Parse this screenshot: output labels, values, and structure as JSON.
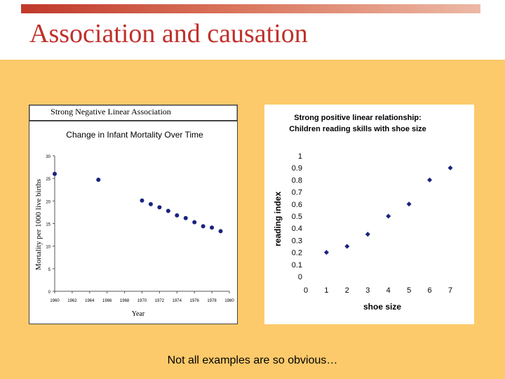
{
  "slide": {
    "title": "Association and causation",
    "caption": "Not all examples are so obvious…"
  },
  "colors": {
    "title": "#c0302b",
    "background": "#fdca6b",
    "marker_dark": "#1a237e"
  },
  "chart_data": [
    {
      "type": "scatter",
      "header": "Strong Negative Linear Association",
      "title": "Change in Infant Mortality Over Time",
      "xlabel": "Year",
      "ylabel": "Mortality per 1000 live births",
      "xlim": [
        1960,
        1980
      ],
      "ylim": [
        0,
        30
      ],
      "xticks": [
        "1960",
        "1962",
        "1964",
        "1966",
        "1968",
        "1970",
        "1972",
        "1974",
        "1976",
        "1978",
        "1980"
      ],
      "yticks": [
        "0",
        "5",
        "10",
        "15",
        "20",
        "25",
        "30"
      ],
      "x": [
        1960,
        1965,
        1970,
        1971,
        1972,
        1973,
        1974,
        1975,
        1976,
        1977,
        1978,
        1979
      ],
      "y": [
        26,
        24.7,
        20.1,
        19.3,
        18.6,
        17.8,
        16.8,
        16.2,
        15.3,
        14.4,
        14.1,
        13.3
      ]
    },
    {
      "type": "scatter",
      "title": "Strong positive linear relationship:",
      "subtitle": "Children reading skills with shoe size",
      "xlabel": "shoe size",
      "ylabel": "reading index",
      "xlim": [
        0,
        7
      ],
      "ylim": [
        0,
        1
      ],
      "xticks": [
        "0",
        "1",
        "2",
        "3",
        "4",
        "5",
        "6",
        "7"
      ],
      "yticks": [
        "0",
        "0.1",
        "0.2",
        "0.3",
        "0.4",
        "0.5",
        "0.6",
        "0.7",
        "0.8",
        "0.9",
        "1"
      ],
      "x": [
        1,
        2,
        3,
        4,
        5,
        6,
        7
      ],
      "y": [
        0.2,
        0.25,
        0.35,
        0.5,
        0.6,
        0.8,
        0.9
      ]
    }
  ]
}
